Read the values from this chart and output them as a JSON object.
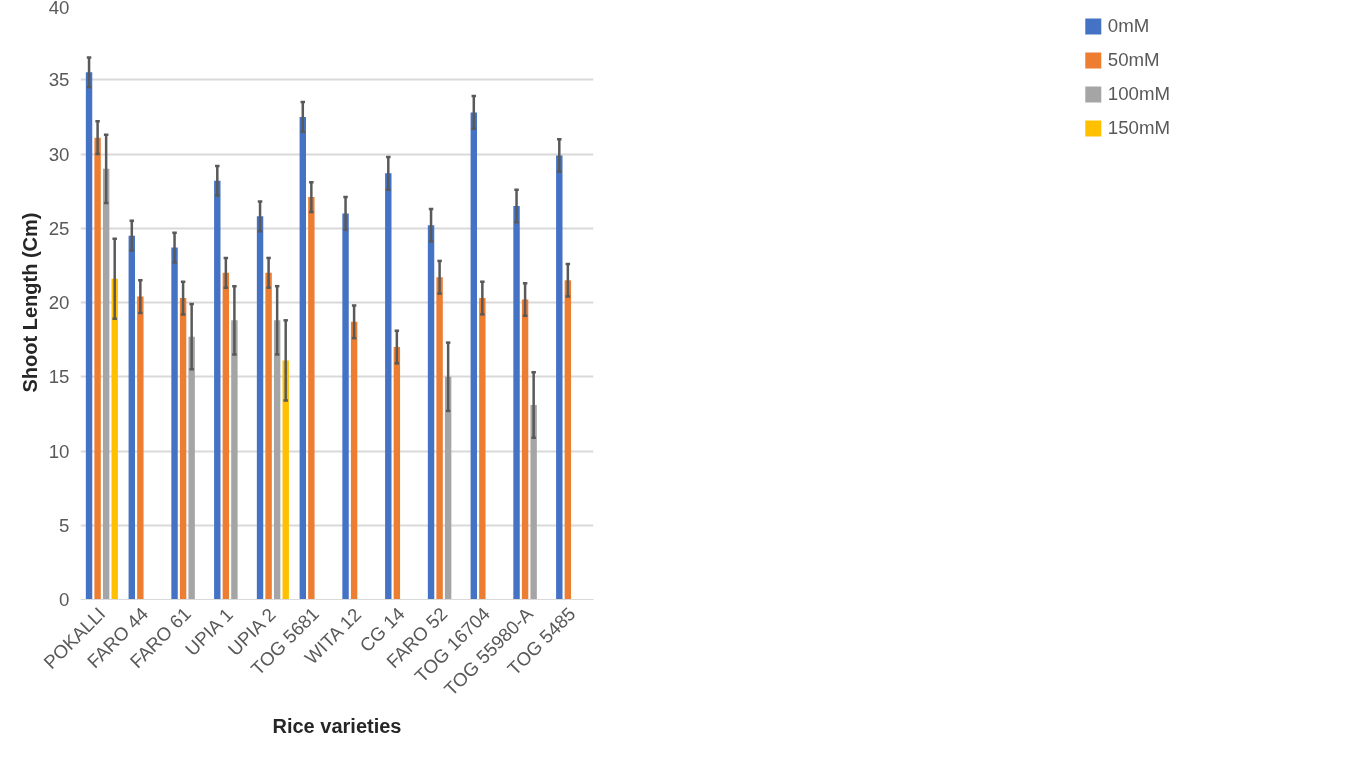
{
  "chart_data": {
    "type": "bar",
    "xlabel": "Rice varieties",
    "ylabel": "Shoot Length (Cm)",
    "categories": [
      "POKALLI",
      "FARO 44",
      "FARO 61",
      "UPIA 1",
      "UPIA 2",
      "TOG 5681",
      "WITA 12",
      "CG 14",
      "FARO 52",
      "TOG 16704",
      "TOG 55980-A",
      "TOG 5485"
    ],
    "series": [
      {
        "name": "0mM",
        "color": "#4472c4",
        "values": [
          35.5,
          24.5,
          23.7,
          28.2,
          25.8,
          32.5,
          26.0,
          28.7,
          25.2,
          32.8,
          26.5,
          29.9
        ],
        "errors": [
          1.0,
          1.0,
          1.0,
          1.0,
          1.0,
          1.0,
          1.1,
          1.1,
          1.1,
          1.1,
          1.1,
          1.1
        ]
      },
      {
        "name": "50mM",
        "color": "#ed7d31",
        "values": [
          31.1,
          20.4,
          20.3,
          22.0,
          22.0,
          27.1,
          18.7,
          17.0,
          21.7,
          20.3,
          20.2,
          21.5
        ],
        "errors": [
          1.1,
          1.1,
          1.1,
          1.0,
          1.0,
          1.0,
          1.1,
          1.1,
          1.1,
          1.1,
          1.1,
          1.1
        ]
      },
      {
        "name": "100mM",
        "color": "#a5a5a5",
        "values": [
          29.0,
          null,
          17.7,
          18.8,
          18.8,
          null,
          null,
          null,
          15.0,
          null,
          13.1,
          null
        ],
        "errors": [
          2.3,
          null,
          2.2,
          2.3,
          2.3,
          null,
          null,
          null,
          2.3,
          null,
          2.2,
          null
        ]
      },
      {
        "name": "150mM",
        "color": "#ffc000",
        "values": [
          21.6,
          null,
          null,
          null,
          16.1,
          null,
          null,
          null,
          null,
          null,
          null,
          null
        ],
        "errors": [
          2.7,
          null,
          null,
          null,
          2.7,
          null,
          null,
          null,
          null,
          null,
          null,
          null
        ]
      }
    ],
    "ylim": [
      0,
      40
    ],
    "yticks": [
      0,
      5,
      10,
      15,
      20,
      25,
      30,
      35,
      40
    ],
    "grid": "y",
    "legend": "right"
  }
}
